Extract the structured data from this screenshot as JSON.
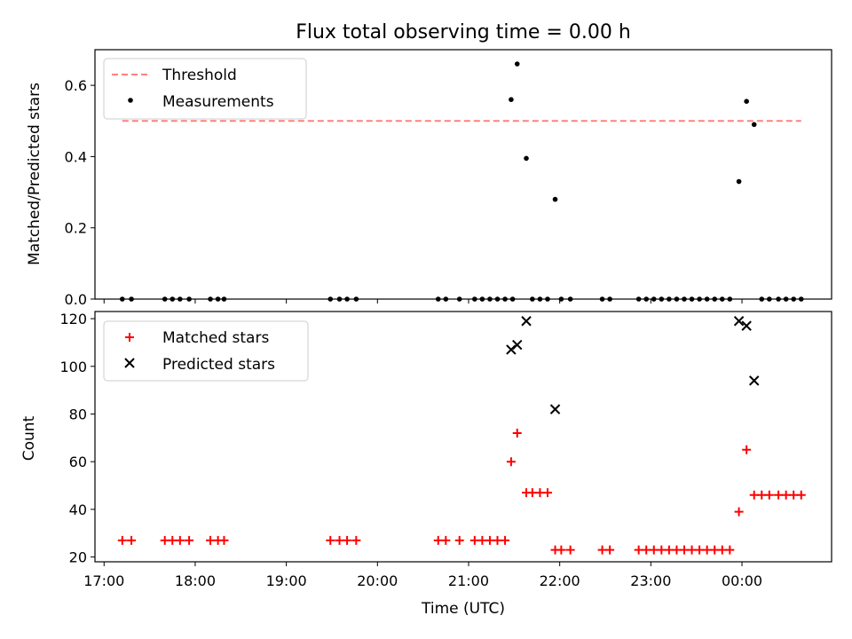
{
  "chart_data": [
    {
      "type": "scatter",
      "title": "Flux total observing time = 0.00 h",
      "xlabel": "",
      "ylabel": "Matched/Predicted stars",
      "xlim": [
        "16:54",
        "24:59"
      ],
      "ylim": [
        0,
        0.7
      ],
      "yticks": [
        0.0,
        0.2,
        0.4,
        0.6
      ],
      "ytick_labels": [
        "0.0",
        "0.2",
        "0.4",
        "0.6"
      ],
      "grid": false,
      "legend_position": "top-left",
      "threshold": {
        "name": "Threshold",
        "color": "#ff8080",
        "value": 0.5,
        "x_range": [
          "17:12",
          "24:39"
        ]
      },
      "series": [
        {
          "name": "Measurements",
          "color": "#000000",
          "points": [
            [
              "17:12",
              0
            ],
            [
              "17:18",
              0
            ],
            [
              "17:40",
              0
            ],
            [
              "17:45",
              0
            ],
            [
              "17:50",
              0
            ],
            [
              "17:56",
              0
            ],
            [
              "18:10",
              0
            ],
            [
              "18:15",
              0
            ],
            [
              "18:19",
              0
            ],
            [
              "19:29",
              0
            ],
            [
              "19:35",
              0
            ],
            [
              "19:40",
              0
            ],
            [
              "19:46",
              0
            ],
            [
              "20:40",
              0
            ],
            [
              "20:45",
              0
            ],
            [
              "20:54",
              0
            ],
            [
              "21:04",
              0
            ],
            [
              "21:09",
              0
            ],
            [
              "21:14",
              0
            ],
            [
              "21:19",
              0
            ],
            [
              "21:24",
              0
            ],
            [
              "21:29",
              0
            ],
            [
              "21:28",
              0.56
            ],
            [
              "21:32",
              0.66
            ],
            [
              "21:38",
              0.395
            ],
            [
              "21:42",
              0
            ],
            [
              "21:47",
              0
            ],
            [
              "21:52",
              0
            ],
            [
              "21:57",
              0.28
            ],
            [
              "22:01",
              0
            ],
            [
              "22:07",
              0
            ],
            [
              "22:28",
              0
            ],
            [
              "22:33",
              0
            ],
            [
              "22:52",
              0
            ],
            [
              "22:57",
              0
            ],
            [
              "23:02",
              0
            ],
            [
              "23:07",
              0
            ],
            [
              "23:12",
              0
            ],
            [
              "23:17",
              0
            ],
            [
              "23:22",
              0
            ],
            [
              "23:27",
              0
            ],
            [
              "23:32",
              0
            ],
            [
              "23:37",
              0
            ],
            [
              "23:42",
              0
            ],
            [
              "23:47",
              0
            ],
            [
              "23:52",
              0
            ],
            [
              "23:58",
              0.33
            ],
            [
              "24:03",
              0.555
            ],
            [
              "24:08",
              0.49
            ],
            [
              "24:13",
              0
            ],
            [
              "24:18",
              0
            ],
            [
              "24:24",
              0
            ],
            [
              "24:29",
              0
            ],
            [
              "24:34",
              0
            ],
            [
              "24:39",
              0
            ]
          ]
        }
      ]
    },
    {
      "type": "scatter",
      "title": "",
      "xlabel": "Time (UTC)",
      "ylabel": "Count",
      "xlim": [
        "16:54",
        "24:59"
      ],
      "ylim": [
        18,
        123
      ],
      "yticks": [
        20,
        40,
        60,
        80,
        100,
        120
      ],
      "ytick_labels": [
        "20",
        "40",
        "60",
        "80",
        "100",
        "120"
      ],
      "xticks": [
        "17:00",
        "18:00",
        "19:00",
        "20:00",
        "21:00",
        "22:00",
        "23:00",
        "24:00"
      ],
      "xtick_labels": [
        "17:00",
        "18:00",
        "19:00",
        "20:00",
        "21:00",
        "22:00",
        "23:00",
        "00:00"
      ],
      "grid": false,
      "legend_position": "top-left",
      "series": [
        {
          "name": "Matched stars",
          "color": "#ff0000",
          "marker": "+",
          "points": [
            [
              "17:12",
              27
            ],
            [
              "17:18",
              27
            ],
            [
              "17:40",
              27
            ],
            [
              "17:45",
              27
            ],
            [
              "17:50",
              27
            ],
            [
              "17:56",
              27
            ],
            [
              "18:10",
              27
            ],
            [
              "18:15",
              27
            ],
            [
              "18:19",
              27
            ],
            [
              "19:29",
              27
            ],
            [
              "19:35",
              27
            ],
            [
              "19:40",
              27
            ],
            [
              "19:46",
              27
            ],
            [
              "20:40",
              27
            ],
            [
              "20:45",
              27
            ],
            [
              "20:54",
              27
            ],
            [
              "21:04",
              27
            ],
            [
              "21:09",
              27
            ],
            [
              "21:14",
              27
            ],
            [
              "21:19",
              27
            ],
            [
              "21:24",
              27
            ],
            [
              "21:28",
              60
            ],
            [
              "21:32",
              72
            ],
            [
              "21:38",
              47
            ],
            [
              "21:42",
              47
            ],
            [
              "21:47",
              47
            ],
            [
              "21:52",
              47
            ],
            [
              "21:57",
              23
            ],
            [
              "22:01",
              23
            ],
            [
              "22:07",
              23
            ],
            [
              "22:28",
              23
            ],
            [
              "22:33",
              23
            ],
            [
              "22:52",
              23
            ],
            [
              "22:57",
              23
            ],
            [
              "23:02",
              23
            ],
            [
              "23:07",
              23
            ],
            [
              "23:12",
              23
            ],
            [
              "23:17",
              23
            ],
            [
              "23:22",
              23
            ],
            [
              "23:27",
              23
            ],
            [
              "23:32",
              23
            ],
            [
              "23:37",
              23
            ],
            [
              "23:42",
              23
            ],
            [
              "23:47",
              23
            ],
            [
              "23:52",
              23
            ],
            [
              "23:58",
              39
            ],
            [
              "24:03",
              65
            ],
            [
              "24:08",
              46
            ],
            [
              "24:13",
              46
            ],
            [
              "24:18",
              46
            ],
            [
              "24:24",
              46
            ],
            [
              "24:29",
              46
            ],
            [
              "24:34",
              46
            ],
            [
              "24:39",
              46
            ]
          ]
        },
        {
          "name": "Predicted stars",
          "color": "#000000",
          "marker": "x",
          "points": [
            [
              "21:28",
              107
            ],
            [
              "21:32",
              109
            ],
            [
              "21:38",
              119
            ],
            [
              "21:57",
              82
            ],
            [
              "23:58",
              119
            ],
            [
              "24:03",
              117
            ],
            [
              "24:08",
              94
            ]
          ]
        }
      ]
    }
  ]
}
